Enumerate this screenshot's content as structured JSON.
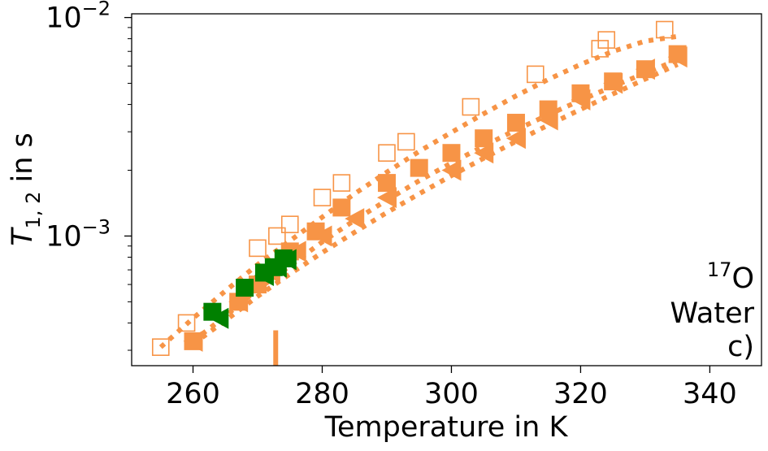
{
  "chart_data": {
    "type": "scatter",
    "xlabel": "Temperature in K",
    "ylabel": "T",
    "ylabel_subscript": "1, 2",
    "ylabel_unit": " in s",
    "x_ticks": [
      260,
      280,
      300,
      320,
      340
    ],
    "y_ticks": [
      {
        "value": 0.001,
        "base": "10",
        "exp": "−3"
      },
      {
        "value": 0.01,
        "base": "10",
        "exp": "−2"
      }
    ],
    "xlim": [
      250.5,
      348
    ],
    "ylim": [
      0.000255,
      0.0104
    ],
    "yscale": "log",
    "grid": false,
    "colors": {
      "orange": "#f79446",
      "green": "#008000"
    },
    "marker_line": {
      "x": 272.8,
      "y_from": 0.000255,
      "y_to": 0.00037
    },
    "annotation": {
      "nucleus_sup": "17",
      "nucleus": "O",
      "line2": "Water",
      "line3": "c)"
    },
    "series": [
      {
        "marker": "open-square",
        "color": "#f79446",
        "x": [
          255,
          259,
          270,
          273,
          275,
          280,
          283,
          290,
          293,
          303,
          313,
          323,
          324,
          333
        ],
        "y": [
          0.00031,
          0.0004,
          0.00088,
          0.001,
          0.00113,
          0.0015,
          0.00175,
          0.0024,
          0.0027,
          0.0039,
          0.0055,
          0.0072,
          0.0079,
          0.0088
        ],
        "fit": {
          "x": [
            255,
            260,
            265,
            270,
            275,
            280,
            285,
            290,
            295,
            300,
            305,
            310,
            315,
            320,
            325,
            330,
            335
          ],
          "y": [
            0.00031,
            0.00042,
            0.00056,
            0.00074,
            0.00095,
            0.00122,
            0.00156,
            0.00196,
            0.00244,
            0.00298,
            0.00363,
            0.00438,
            0.00521,
            0.0061,
            0.007,
            0.0078,
            0.0082
          ]
        }
      },
      {
        "marker": "filled-square",
        "color": "#f79446",
        "x": [
          260,
          267,
          270,
          275,
          279,
          283,
          290,
          295,
          300,
          305,
          310,
          315,
          320,
          325,
          330,
          335
        ],
        "y": [
          0.00033,
          0.0005,
          0.0006,
          0.00085,
          0.00105,
          0.00135,
          0.00175,
          0.00205,
          0.0024,
          0.0028,
          0.0033,
          0.0038,
          0.0045,
          0.0051,
          0.0058,
          0.0068
        ],
        "fit": {
          "x": [
            260,
            265,
            270,
            275,
            280,
            285,
            290,
            295,
            300,
            305,
            310,
            315,
            320,
            325,
            330,
            335
          ],
          "y": [
            0.00033,
            0.00043,
            0.00057,
            0.00073,
            0.00094,
            0.00118,
            0.00146,
            0.00179,
            0.00216,
            0.00258,
            0.00306,
            0.00359,
            0.00418,
            0.00484,
            0.00557,
            0.0064
          ]
        }
      },
      {
        "marker": "left-triangle",
        "color": "#f79446",
        "x": [
          260,
          267,
          272,
          276,
          280,
          285,
          290,
          300,
          305,
          310,
          315,
          320,
          325,
          330,
          335
        ],
        "y": [
          0.00033,
          0.0005,
          0.00068,
          0.00085,
          0.001,
          0.0012,
          0.0015,
          0.002,
          0.0024,
          0.0028,
          0.0034,
          0.0042,
          0.005,
          0.0058,
          0.0066
        ],
        "fit": {
          "x": [
            260,
            265,
            270,
            275,
            280,
            285,
            290,
            295,
            300,
            305,
            310,
            315,
            320,
            325,
            330,
            335
          ],
          "y": [
            0.00032,
            0.00041,
            0.00053,
            0.00067,
            0.00084,
            0.00104,
            0.00128,
            0.00156,
            0.00189,
            0.00227,
            0.00271,
            0.00322,
            0.0038,
            0.00447,
            0.00523,
            0.0061
          ]
        }
      },
      {
        "marker": "filled-square",
        "color": "#008000",
        "x": [
          263,
          268,
          271,
          272.5,
          274
        ],
        "y": [
          0.00045,
          0.00058,
          0.00068,
          0.00072,
          0.00079
        ]
      },
      {
        "marker": "left-triangle",
        "color": "#008000",
        "x": [
          264,
          271,
          273,
          274.5
        ],
        "y": [
          0.00042,
          0.00066,
          0.00072,
          0.00078
        ]
      }
    ]
  }
}
